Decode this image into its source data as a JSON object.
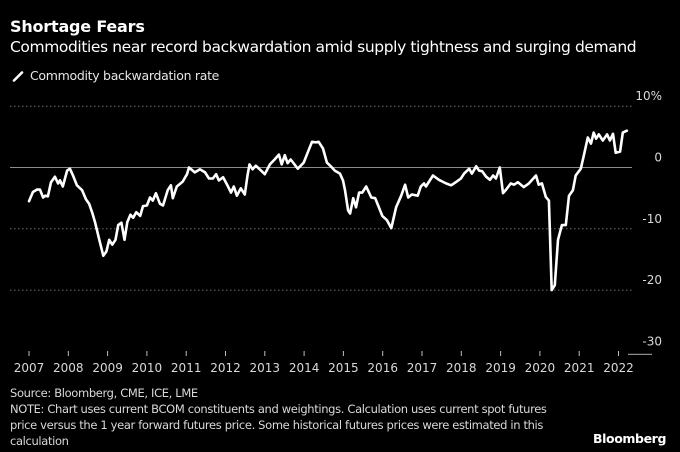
{
  "chart_data": {
    "type": "line",
    "title": "Shortage Fears",
    "subtitle": "Commodities near record backwardation amid supply tightness and surging demand",
    "legend": [
      {
        "name": "Commodity backwardation rate",
        "color": "#ffffff"
      }
    ],
    "legend_position": "top-left",
    "xlabel": "",
    "ylabel": "",
    "ylim": [
      -30,
      10
    ],
    "xlim": [
      2007,
      2022.1
    ],
    "y_ticks": [
      10,
      0,
      -10,
      -20,
      -30
    ],
    "y_tick_labels": [
      "10%",
      "0",
      "-10",
      "-20",
      "-30"
    ],
    "x_ticks": [
      2007,
      2008,
      2009,
      2010,
      2011,
      2012,
      2013,
      2014,
      2015,
      2016,
      2017,
      2018,
      2019,
      2020,
      2021,
      2022
    ],
    "x_tick_labels": [
      "2007",
      "2008",
      "2009",
      "2010",
      "2011",
      "2012",
      "2013",
      "2014",
      "2015",
      "2016",
      "2017",
      "2018",
      "2019",
      "2020",
      "2021",
      "2022"
    ],
    "grid": "horizontal dotted",
    "series": [
      {
        "name": "Commodity backwardation rate",
        "color": "#ffffff",
        "points": [
          [
            2007.0,
            -5.5
          ],
          [
            2007.1,
            -4.0
          ],
          [
            2007.2,
            -3.6
          ],
          [
            2007.28,
            -3.6
          ],
          [
            2007.36,
            -4.9
          ],
          [
            2007.41,
            -4.6
          ],
          [
            2007.48,
            -4.7
          ],
          [
            2007.56,
            -2.4
          ],
          [
            2007.66,
            -1.5
          ],
          [
            2007.74,
            -2.6
          ],
          [
            2007.79,
            -2.1
          ],
          [
            2007.86,
            -3.1
          ],
          [
            2007.97,
            -0.5
          ],
          [
            2008.04,
            -0.2
          ],
          [
            2008.12,
            -1.3
          ],
          [
            2008.22,
            -2.9
          ],
          [
            2008.35,
            -3.7
          ],
          [
            2008.45,
            -5.2
          ],
          [
            2008.53,
            -5.9
          ],
          [
            2008.61,
            -7.4
          ],
          [
            2008.68,
            -8.9
          ],
          [
            2008.79,
            -11.8
          ],
          [
            2008.89,
            -14.4
          ],
          [
            2008.97,
            -13.7
          ],
          [
            2009.04,
            -11.8
          ],
          [
            2009.12,
            -12.6
          ],
          [
            2009.2,
            -11.8
          ],
          [
            2009.27,
            -9.4
          ],
          [
            2009.35,
            -9.0
          ],
          [
            2009.43,
            -11.8
          ],
          [
            2009.5,
            -8.9
          ],
          [
            2009.58,
            -7.7
          ],
          [
            2009.65,
            -8.2
          ],
          [
            2009.73,
            -7.3
          ],
          [
            2009.83,
            -7.9
          ],
          [
            2009.9,
            -6.3
          ],
          [
            2010.0,
            -6.2
          ],
          [
            2010.08,
            -4.9
          ],
          [
            2010.15,
            -5.4
          ],
          [
            2010.23,
            -4.2
          ],
          [
            2010.33,
            -5.9
          ],
          [
            2010.41,
            -6.2
          ],
          [
            2010.53,
            -3.7
          ],
          [
            2010.61,
            -2.9
          ],
          [
            2010.66,
            -5.0
          ],
          [
            2010.76,
            -3.1
          ],
          [
            2010.91,
            -2.3
          ],
          [
            2011.02,
            -1.1
          ],
          [
            2011.07,
            0.0
          ],
          [
            2011.22,
            -0.8
          ],
          [
            2011.35,
            -0.3
          ],
          [
            2011.48,
            -0.8
          ],
          [
            2011.58,
            -1.8
          ],
          [
            2011.68,
            -1.8
          ],
          [
            2011.76,
            -1.1
          ],
          [
            2011.83,
            -2.1
          ],
          [
            2011.94,
            -1.6
          ],
          [
            2012.04,
            -2.8
          ],
          [
            2012.14,
            -4.1
          ],
          [
            2012.21,
            -3.1
          ],
          [
            2012.29,
            -4.6
          ],
          [
            2012.39,
            -3.4
          ],
          [
            2012.49,
            -4.4
          ],
          [
            2012.56,
            -1.3
          ],
          [
            2012.61,
            0.5
          ],
          [
            2012.69,
            -0.3
          ],
          [
            2012.77,
            0.3
          ],
          [
            2012.87,
            -0.3
          ],
          [
            2013.0,
            -1.1
          ],
          [
            2013.13,
            0.5
          ],
          [
            2013.25,
            1.3
          ],
          [
            2013.36,
            2.1
          ],
          [
            2013.43,
            0.5
          ],
          [
            2013.51,
            2.0
          ],
          [
            2013.58,
            0.7
          ],
          [
            2013.66,
            1.3
          ],
          [
            2013.84,
            -0.2
          ],
          [
            2013.99,
            0.8
          ],
          [
            2014.09,
            2.4
          ],
          [
            2014.2,
            4.2
          ],
          [
            2014.3,
            4.1
          ],
          [
            2014.37,
            4.2
          ],
          [
            2014.48,
            3.1
          ],
          [
            2014.58,
            0.8
          ],
          [
            2014.68,
            0.2
          ],
          [
            2014.78,
            -0.5
          ],
          [
            2014.91,
            -1.0
          ],
          [
            2014.99,
            -2.1
          ],
          [
            2015.04,
            -3.7
          ],
          [
            2015.12,
            -7.0
          ],
          [
            2015.17,
            -7.5
          ],
          [
            2015.25,
            -5.0
          ],
          [
            2015.32,
            -6.5
          ],
          [
            2015.4,
            -4.1
          ],
          [
            2015.48,
            -4.1
          ],
          [
            2015.58,
            -3.1
          ],
          [
            2015.71,
            -4.9
          ],
          [
            2015.81,
            -5.0
          ],
          [
            2015.89,
            -6.3
          ],
          [
            2015.99,
            -7.9
          ],
          [
            2016.11,
            -8.6
          ],
          [
            2016.22,
            -9.9
          ],
          [
            2016.34,
            -6.5
          ],
          [
            2016.47,
            -4.6
          ],
          [
            2016.57,
            -2.8
          ],
          [
            2016.65,
            -4.9
          ],
          [
            2016.74,
            -4.4
          ],
          [
            2016.89,
            -4.6
          ],
          [
            2016.97,
            -3.1
          ],
          [
            2017.05,
            -2.6
          ],
          [
            2017.1,
            -3.1
          ],
          [
            2017.28,
            -1.3
          ],
          [
            2017.43,
            -2.0
          ],
          [
            2017.61,
            -2.6
          ],
          [
            2017.74,
            -2.9
          ],
          [
            2017.86,
            -2.4
          ],
          [
            2017.99,
            -1.8
          ],
          [
            2018.07,
            -1.0
          ],
          [
            2018.2,
            -0.2
          ],
          [
            2018.27,
            -1.0
          ],
          [
            2018.38,
            0.2
          ],
          [
            2018.45,
            -0.5
          ],
          [
            2018.53,
            -0.6
          ],
          [
            2018.63,
            -1.5
          ],
          [
            2018.73,
            -2.0
          ],
          [
            2018.81,
            -1.3
          ],
          [
            2018.88,
            -1.8
          ],
          [
            2018.98,
            0.0
          ],
          [
            2019.06,
            -4.2
          ],
          [
            2019.14,
            -3.6
          ],
          [
            2019.26,
            -2.6
          ],
          [
            2019.34,
            -2.8
          ],
          [
            2019.44,
            -2.4
          ],
          [
            2019.59,
            -3.2
          ],
          [
            2019.72,
            -2.6
          ],
          [
            2019.9,
            -1.3
          ],
          [
            2019.97,
            -2.8
          ],
          [
            2020.05,
            -2.6
          ],
          [
            2020.15,
            -4.8
          ],
          [
            2020.23,
            -5.4
          ],
          [
            2020.3,
            -20.0
          ],
          [
            2020.38,
            -19.2
          ],
          [
            2020.46,
            -11.8
          ],
          [
            2020.56,
            -9.4
          ],
          [
            2020.66,
            -9.4
          ],
          [
            2020.74,
            -4.6
          ],
          [
            2020.84,
            -3.7
          ],
          [
            2020.91,
            -1.3
          ],
          [
            2021.04,
            -0.2
          ],
          [
            2021.12,
            2.0
          ],
          [
            2021.22,
            4.9
          ],
          [
            2021.3,
            3.9
          ],
          [
            2021.37,
            5.7
          ],
          [
            2021.43,
            4.7
          ],
          [
            2021.5,
            5.4
          ],
          [
            2021.6,
            4.4
          ],
          [
            2021.71,
            5.4
          ],
          [
            2021.78,
            4.4
          ],
          [
            2021.86,
            5.5
          ],
          [
            2021.93,
            2.4
          ],
          [
            2022.04,
            2.6
          ],
          [
            2022.11,
            5.7
          ],
          [
            2022.21,
            6.0
          ]
        ]
      }
    ],
    "source": "Source: Bloomberg, CME, ICE, LME",
    "note": "NOTE: Chart uses current BCOM constituents and weightings. Calculation uses current spot futures price versus the 1 year forward futures price. Some historical futures prices were estimated in this calculation",
    "brand": "Bloomberg"
  }
}
